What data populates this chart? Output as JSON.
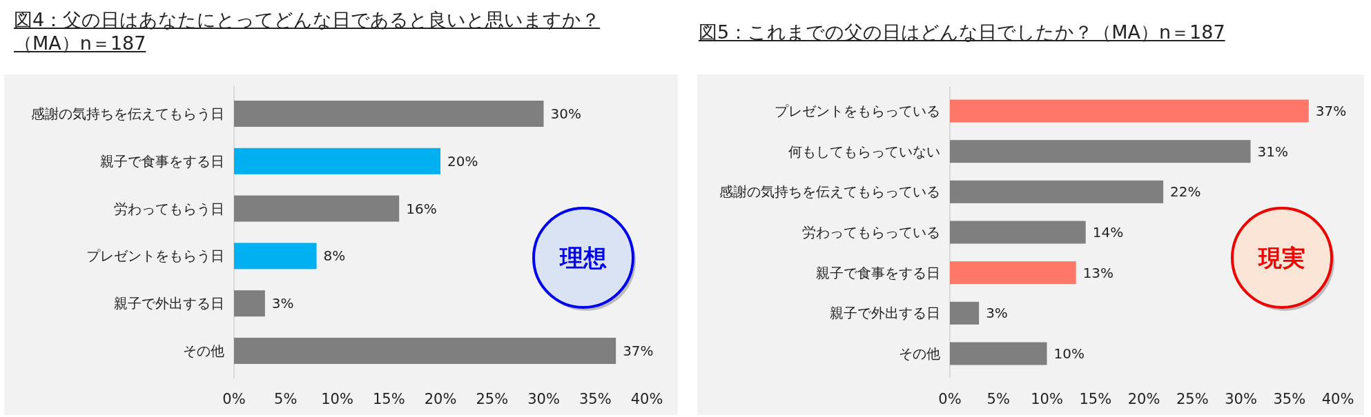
{
  "chart_data": [
    {
      "type": "bar",
      "orientation": "horizontal",
      "title": "図4：父の日はあなたにとってどんな日であると良いと思いますか？（MA）n＝187",
      "categories": [
        "感謝の気持ちを伝えてもらう日",
        "親子で食事をする日",
        "労わってもらう日",
        "プレゼントをもらう日",
        "親子で外出する日",
        "その他"
      ],
      "values": [
        30,
        20,
        16,
        8,
        3,
        37
      ],
      "colors": [
        "#7f7f7f",
        "#00b0f0",
        "#7f7f7f",
        "#00b0f0",
        "#7f7f7f",
        "#7f7f7f"
      ],
      "value_labels": [
        "30%",
        "20%",
        "16%",
        "8%",
        "3%",
        "37%"
      ],
      "xlim": [
        0,
        40
      ],
      "xticks": [
        {
          "value": 0,
          "label": "0%"
        },
        {
          "value": 5,
          "label": "5%"
        },
        {
          "value": 10,
          "label": "10%"
        },
        {
          "value": 15,
          "label": "15%"
        },
        {
          "value": 20,
          "label": "20%"
        },
        {
          "value": 25,
          "label": "25%"
        },
        {
          "value": 30,
          "label": "30%"
        },
        {
          "value": 35,
          "label": "35%"
        },
        {
          "value": 40,
          "label": "40%"
        }
      ],
      "annotations": [
        "理想"
      ]
    },
    {
      "type": "bar",
      "orientation": "horizontal",
      "title": "図5：これまでの父の日はどんな日でしたか？（MA）n＝187",
      "categories": [
        "プレゼントをもらっている",
        "何もしてもらっていない",
        "感謝の気持ちを伝えてもらっている",
        "労わってもらっている",
        "親子で食事をする日",
        "親子で外出する日",
        "その他"
      ],
      "values": [
        37,
        31,
        22,
        14,
        13,
        3,
        10
      ],
      "colors": [
        "#ff7769",
        "#7f7f7f",
        "#7f7f7f",
        "#7f7f7f",
        "#ff7769",
        "#7f7f7f",
        "#7f7f7f"
      ],
      "value_labels": [
        "37%",
        "31%",
        "22%",
        "14%",
        "13%",
        "3%",
        "10%"
      ],
      "xlim": [
        0,
        40
      ],
      "xticks": [
        {
          "value": 0,
          "label": "0%"
        },
        {
          "value": 5,
          "label": "5%"
        },
        {
          "value": 10,
          "label": "10%"
        },
        {
          "value": 15,
          "label": "15%"
        },
        {
          "value": 20,
          "label": "20%"
        },
        {
          "value": 25,
          "label": "25%"
        },
        {
          "value": 30,
          "label": "30%"
        },
        {
          "value": 35,
          "label": "35%"
        },
        {
          "value": 40,
          "label": "40%"
        }
      ],
      "annotations": [
        "現実"
      ]
    }
  ]
}
